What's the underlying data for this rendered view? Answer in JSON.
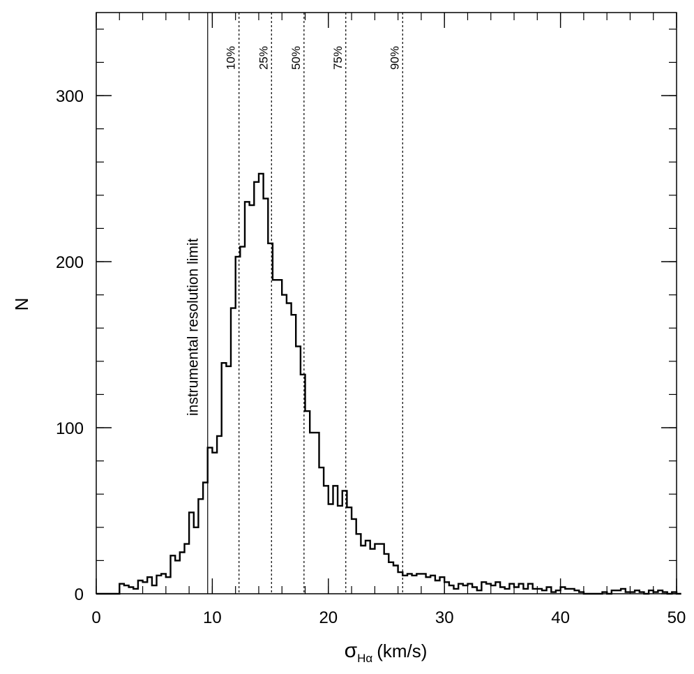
{
  "chart_data": {
    "type": "histogram",
    "title": "",
    "xlabel": {
      "symbol": "σ",
      "subscript": "Hα",
      "units": "(km/s)"
    },
    "ylabel": "N",
    "xlim": [
      0,
      50
    ],
    "ylim": [
      0,
      350
    ],
    "x_ticks": [
      0,
      10,
      20,
      30,
      40,
      50
    ],
    "y_ticks": [
      0,
      100,
      200,
      300
    ],
    "x_tick_labels": [
      "0",
      "10",
      "20",
      "30",
      "40",
      "50"
    ],
    "y_tick_labels": [
      "0",
      "100",
      "200",
      "300"
    ],
    "x_minor_step": 2,
    "y_minor_step": 20,
    "grid": false,
    "bin_width": 0.4,
    "bin_start": 0.0,
    "counts": [
      0,
      0,
      0,
      0,
      0,
      6,
      5,
      4,
      3,
      8,
      7,
      10,
      5,
      11,
      12,
      10,
      23,
      20,
      25,
      30,
      49,
      40,
      57,
      67,
      88,
      85,
      95,
      139,
      137,
      172,
      203,
      209,
      236,
      234,
      248,
      253,
      238,
      211,
      189,
      189,
      180,
      175,
      168,
      149,
      132,
      110,
      97,
      97,
      76,
      65,
      54,
      65,
      53,
      62,
      52,
      45,
      36,
      29,
      32,
      27,
      30,
      30,
      24,
      19,
      17,
      13,
      11,
      12,
      11,
      12,
      12,
      10,
      11,
      8,
      10,
      7,
      5,
      3,
      6,
      5,
      6,
      4,
      2,
      7,
      6,
      5,
      7,
      4,
      3,
      6,
      4,
      6,
      3,
      6,
      3,
      3,
      2,
      4,
      1,
      2,
      4,
      3,
      3,
      2,
      1,
      0,
      0,
      0,
      0,
      1,
      0,
      2,
      2,
      3,
      1,
      1,
      2,
      1,
      0,
      2,
      1,
      2,
      1,
      0,
      1,
      0
    ],
    "vlines": [
      {
        "x": 9.6,
        "style": "solid",
        "label": "instrumental resolution limit"
      },
      {
        "x": 12.3,
        "style": "dotted",
        "label": "10%"
      },
      {
        "x": 15.1,
        "style": "dotted",
        "label": "25%"
      },
      {
        "x": 17.9,
        "style": "dotted",
        "label": "50%"
      },
      {
        "x": 21.5,
        "style": "dotted",
        "label": "75%"
      },
      {
        "x": 26.4,
        "style": "dotted",
        "label": "90%"
      }
    ],
    "line_color": "#000000"
  }
}
